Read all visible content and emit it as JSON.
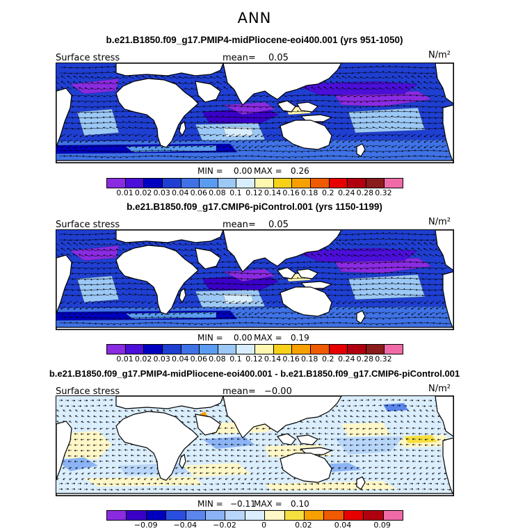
{
  "season": "ANN",
  "panels": [
    {
      "title": "b.e21.B1850.f09_g17.PMIP4-midPliocene-eoi400.001 (yrs 951-1050)",
      "variable": "Surface stress",
      "mean_label": "mean=",
      "mean_value": "0.05",
      "units": "N/m²",
      "min_label": "MIN =",
      "min_value": "0.00",
      "max_label": "MAX =",
      "max_value": "0.26",
      "kind": "absolute",
      "ticks": [
        "0.01",
        "0.02",
        "0.03",
        "0.04",
        "0.06",
        "0.08",
        "0.1",
        "0.12",
        "0.14",
        "0.16",
        "0.18",
        "0.2",
        "0.24",
        "0.28",
        "0.32"
      ]
    },
    {
      "title": "b.e21.B1850.f09_g17.CMIP6-piControl.001 (yrs 1150-1199)",
      "variable": "Surface stress",
      "mean_label": "mean=",
      "mean_value": "0.05",
      "units": "N/m²",
      "min_label": "MIN =",
      "min_value": "0.00",
      "max_label": "MAX =",
      "max_value": "0.19",
      "kind": "absolute",
      "ticks": [
        "0.01",
        "0.02",
        "0.03",
        "0.04",
        "0.06",
        "0.08",
        "0.1",
        "0.12",
        "0.14",
        "0.16",
        "0.18",
        "0.2",
        "0.24",
        "0.28",
        "0.32"
      ]
    },
    {
      "title": "b.e21.B1850.f09_g17.PMIP4-midPliocene-eoi400.001 - b.e21.B1850.f09_g17.CMIP6-piControl.001",
      "variable": "Surface stress",
      "mean_label": "mean=",
      "mean_value": "−0.00",
      "units": "N/m²",
      "min_label": "MIN =",
      "min_value": "−0.11",
      "max_label": "MAX =",
      "max_value": "0.10",
      "kind": "difference",
      "ticks": [
        "−0.09",
        "−0.04",
        "−0.02",
        "0",
        "0.02",
        "0.04",
        "0.09"
      ]
    }
  ],
  "colors": {
    "absolute_scale": [
      "#8a2be2",
      "#4b0fd9",
      "#0000c0",
      "#1f3fd2",
      "#3f72e6",
      "#5a9cf0",
      "#9cc8f5",
      "#d8eefc",
      "#fff7b0",
      "#f7d01a",
      "#f7a000",
      "#f05a00",
      "#e60000",
      "#b00010",
      "#8a1c1c",
      "#f06aa8"
    ],
    "difference_scale": [
      "#8a2be2",
      "#3b00c8",
      "#0000c0",
      "#2a4fe0",
      "#5a86ee",
      "#8cb4f5",
      "#b8d6fa",
      "#dbeefd",
      "#fff7c8",
      "#f7df40",
      "#f7a000",
      "#f05a00",
      "#e60000",
      "#b00010",
      "#f06aa8"
    ]
  }
}
